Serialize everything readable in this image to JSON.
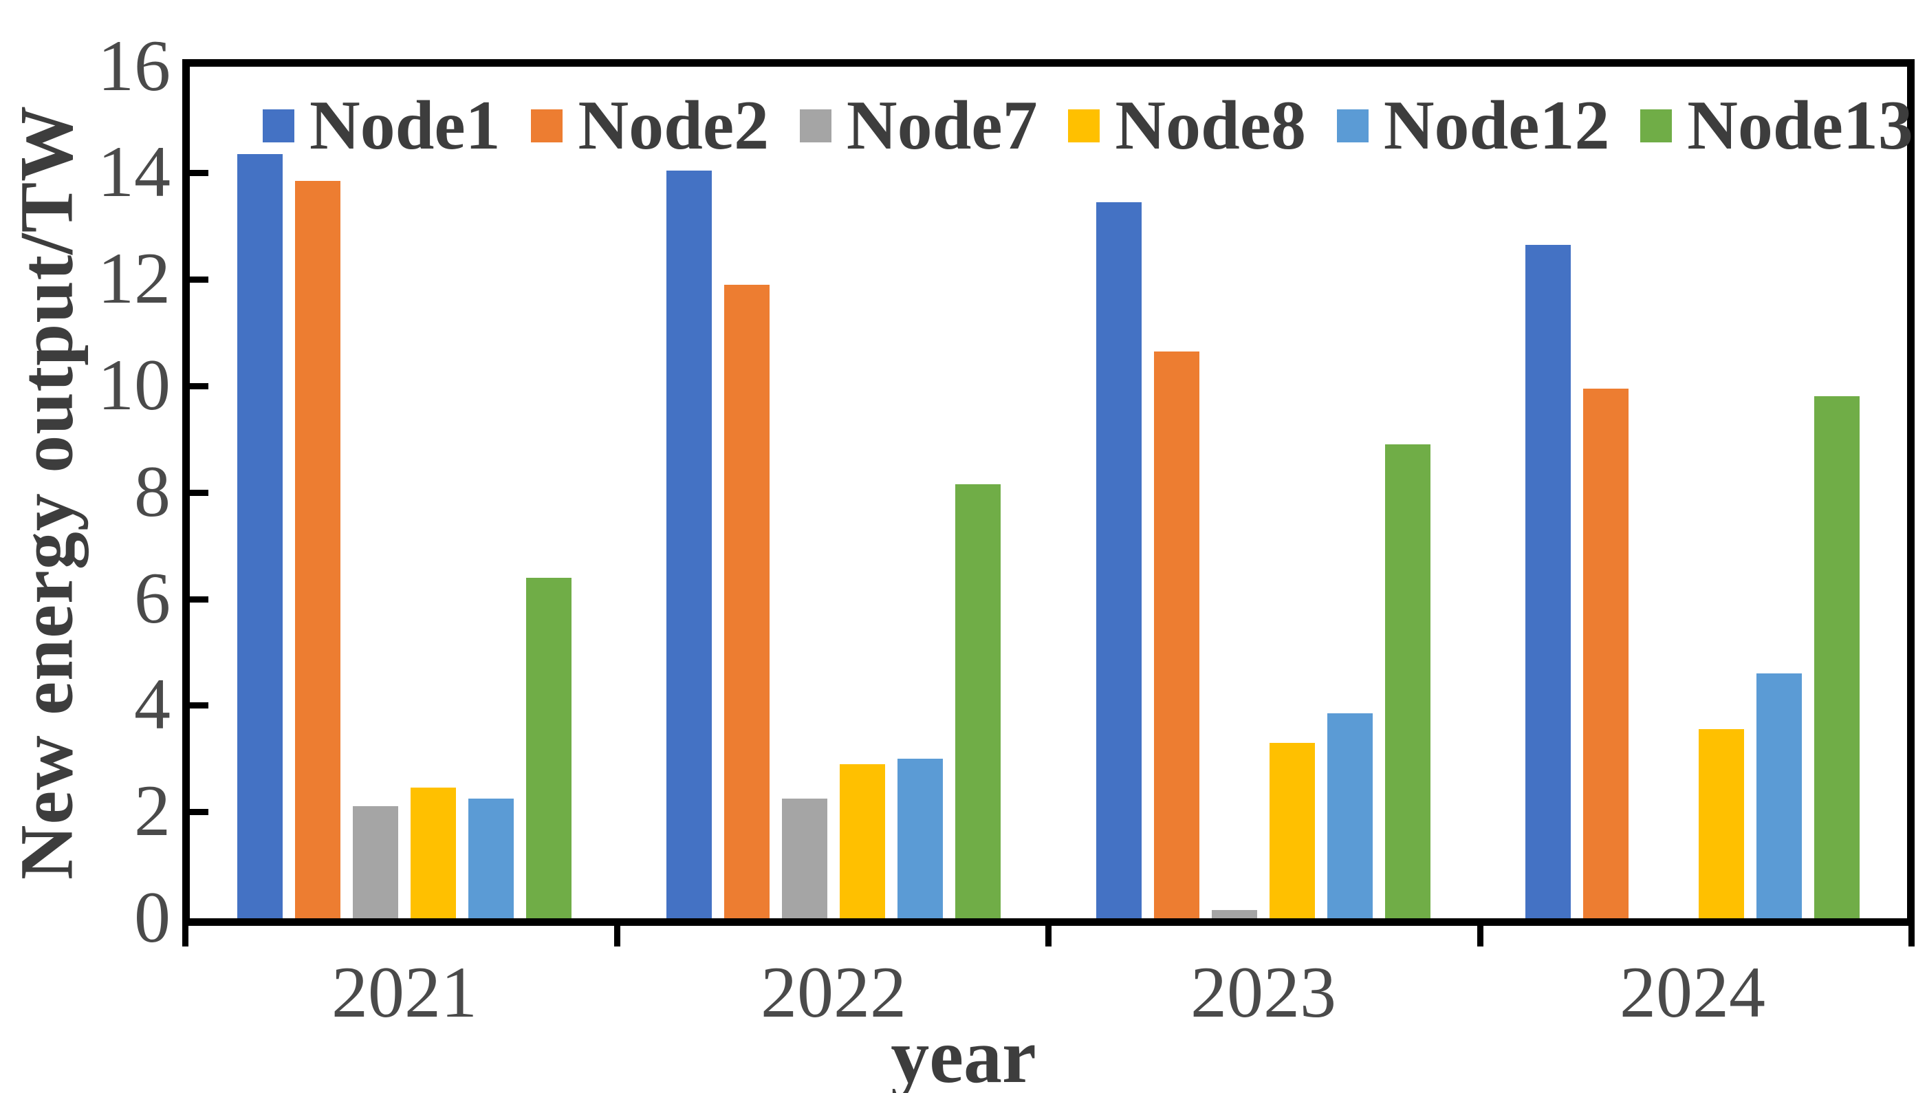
{
  "chart_data": {
    "type": "bar",
    "title": "",
    "xlabel": "year",
    "ylabel": "New energy output/TW",
    "categories": [
      "2021",
      "2022",
      "2023",
      "2024"
    ],
    "series": [
      {
        "name": "Node1",
        "color": "#4472C4",
        "values": [
          14.35,
          14.05,
          13.45,
          12.65
        ]
      },
      {
        "name": "Node2",
        "color": "#ED7D31",
        "values": [
          13.85,
          11.9,
          10.65,
          9.95
        ]
      },
      {
        "name": "Node7",
        "color": "#A5A5A5",
        "values": [
          2.1,
          2.25,
          0.15,
          0.0
        ]
      },
      {
        "name": "Node8",
        "color": "#FFC000",
        "values": [
          2.45,
          2.9,
          3.3,
          3.55
        ]
      },
      {
        "name": "Node12",
        "color": "#5B9BD5",
        "values": [
          2.25,
          3.0,
          3.85,
          4.6
        ]
      },
      {
        "name": "Node13",
        "color": "#70AD47",
        "values": [
          6.4,
          8.15,
          8.9,
          9.8
        ]
      }
    ],
    "ylim": [
      0,
      16
    ],
    "yticks": [
      0,
      2,
      4,
      6,
      8,
      10,
      12,
      14,
      16
    ],
    "grid": false,
    "legend_position": "top-inside",
    "axis_color": "#000000",
    "text_color": "#4a4a4a",
    "background": "#ffffff"
  }
}
